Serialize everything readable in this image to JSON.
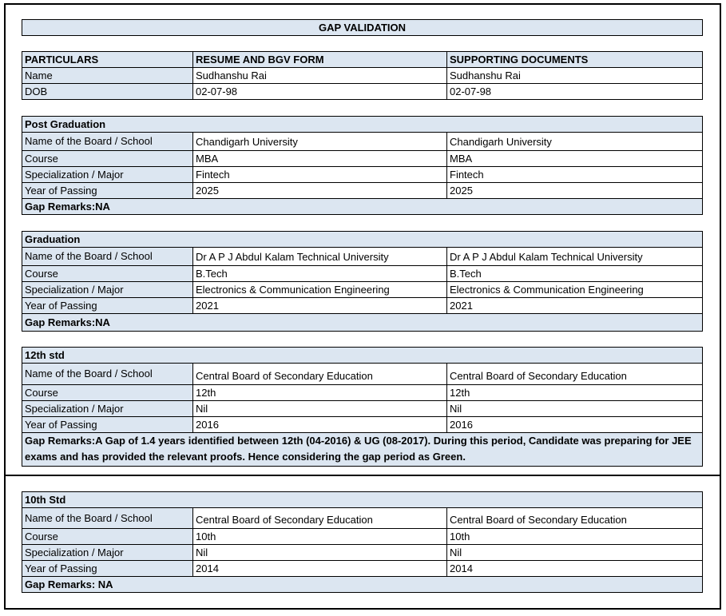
{
  "header": {
    "title": "GAP VALIDATION"
  },
  "table": {
    "columns": [
      "PARTICULARS",
      "RESUME AND BGV FORM",
      "SUPPORTING DOCUMENTS"
    ],
    "rows": [
      [
        "Name",
        "Sudhanshu Rai",
        "Sudhanshu Rai"
      ],
      [
        "DOB",
        "02-07-98",
        "02-07-98"
      ]
    ]
  },
  "sections": [
    {
      "title": "Post Graduation",
      "rows": [
        [
          "Name of the Board / School",
          "Chandigarh University",
          "Chandigarh University"
        ],
        [
          "Course",
          "MBA",
          "MBA"
        ],
        [
          "Specialization / Major",
          "Fintech",
          "Fintech"
        ],
        [
          "Year of Passing",
          "2025",
          "2025"
        ]
      ],
      "remarks": "Gap Remarks:NA"
    },
    {
      "title": "Graduation",
      "rows": [
        [
          "Name of the Board / School",
          "Dr A P J Abdul Kalam Technical University",
          "Dr A P J Abdul Kalam Technical University"
        ],
        [
          "Course",
          "B.Tech",
          "B.Tech"
        ],
        [
          "Specialization / Major",
          "Electronics & Communication Engineering",
          "Electronics & Communication Engineering"
        ],
        [
          "Year of Passing",
          "2021",
          "2021"
        ]
      ],
      "remarks": "Gap Remarks:NA"
    },
    {
      "title": "12th std",
      "rows": [
        [
          "Name of the Board / School",
          "Central Board of Secondary Education",
          "Central Board of Secondary Education"
        ],
        [
          "Course",
          "12th",
          "12th"
        ],
        [
          "Specialization / Major",
          "Nil",
          "Nil"
        ],
        [
          "Year of Passing",
          "2016",
          "2016"
        ]
      ],
      "remarks": "Gap Remarks:A Gap of 1.4 years identified between 12th (04-2016) & UG (08-2017). During this period, Candidate was preparing for JEE exams and has provided the relevant proofs. Hence considering the gap period as Green."
    },
    {
      "title": "10th Std",
      "rows": [
        [
          "Name of the Board / School",
          "Central Board of Secondary Education",
          "Central Board of Secondary Education"
        ],
        [
          "Course",
          "10th",
          "10th"
        ],
        [
          "Specialization / Major",
          "Nil",
          "Nil"
        ],
        [
          "Year of Passing",
          "2014",
          "2014"
        ]
      ],
      "remarks": "Gap Remarks: NA"
    }
  ]
}
